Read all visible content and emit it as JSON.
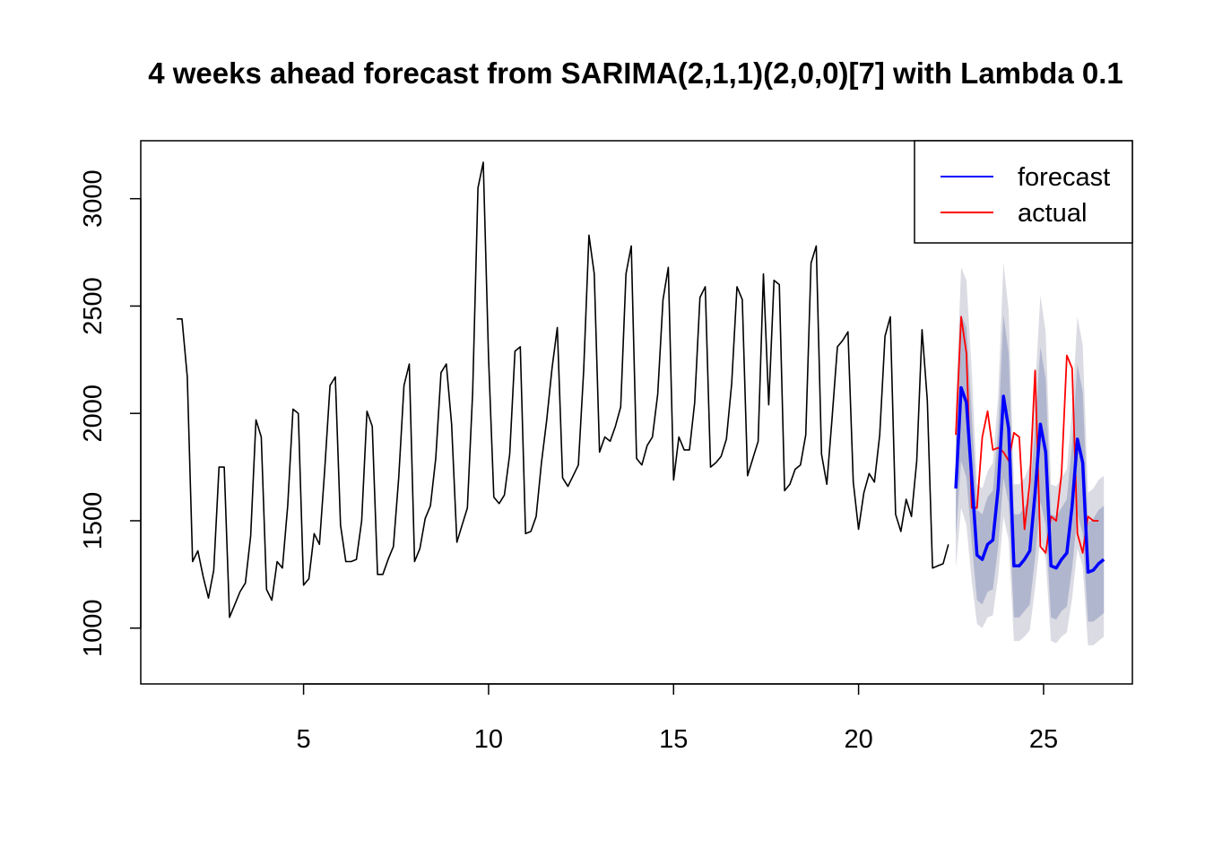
{
  "chart_data": {
    "type": "line",
    "title": "4 weeks ahead forecast from SARIMA(2,1,1)(2,0,0)[7] with Lambda 0.1",
    "xlabel": "",
    "ylabel": "",
    "xlim": [
      0.6,
      27.4
    ],
    "ylim": [
      740,
      3270
    ],
    "x_ticks": [
      5,
      10,
      15,
      20,
      25
    ],
    "y_ticks": [
      1000,
      1500,
      2000,
      2500,
      3000
    ],
    "grid": false,
    "legend": {
      "position": "top-right",
      "entries": [
        {
          "label": "forecast",
          "color": "#0000FF"
        },
        {
          "label": "actual",
          "color": "#FF0000"
        }
      ]
    },
    "colors": {
      "history": "#000000",
      "forecast": "#0000FF",
      "actual": "#FF0000",
      "interval_80": "#B1B6CF",
      "interval_95": "#DBDBE3"
    },
    "history": {
      "start_x": 1.5714,
      "step": 0.142857,
      "values": [
        2440,
        2440,
        2170,
        1310,
        1360,
        1240,
        1140,
        1270,
        1750,
        1750,
        1050,
        1110,
        1170,
        1210,
        1430,
        1970,
        1890,
        1180,
        1130,
        1310,
        1280,
        1570,
        2020,
        2000,
        1200,
        1230,
        1440,
        1390,
        1740,
        2130,
        2170,
        1480,
        1310,
        1310,
        1320,
        1500,
        2010,
        1940,
        1250,
        1250,
        1320,
        1380,
        1700,
        2130,
        2230,
        1310,
        1370,
        1510,
        1570,
        1790,
        2190,
        2230,
        1950,
        1400,
        1480,
        1560,
        2100,
        3050,
        3170,
        2260,
        1610,
        1580,
        1620,
        1810,
        2290,
        2310,
        1440,
        1450,
        1520,
        1770,
        1970,
        2210,
        2400,
        1700,
        1660,
        1710,
        1760,
        2200,
        2830,
        2650,
        1820,
        1890,
        1870,
        1940,
        2030,
        2650,
        2780,
        1790,
        1760,
        1850,
        1890,
        2090,
        2530,
        2680,
        1690,
        1890,
        1830,
        1830,
        2050,
        2540,
        2590,
        1750,
        1770,
        1800,
        1880,
        2140,
        2590,
        2530,
        1710,
        1790,
        1870,
        2650,
        2040,
        2620,
        2600,
        1640,
        1670,
        1740,
        1760,
        1900,
        2700,
        2780,
        1810,
        1670,
        1980,
        2310,
        2340,
        2380,
        1680,
        1460,
        1630,
        1720,
        1680,
        1900,
        2360,
        2450,
        1530,
        1450,
        1600,
        1520,
        1780,
        2390,
        2060,
        1280,
        1290,
        1300,
        1390
      ]
    },
    "forecast": {
      "start_x": 22.6286,
      "step": 0.142857,
      "values": [
        1650,
        2120,
        2050,
        1700,
        1340,
        1320,
        1390,
        1410,
        1650,
        2080,
        1930,
        1290,
        1290,
        1320,
        1360,
        1630,
        1950,
        1820,
        1290,
        1280,
        1320,
        1350,
        1570,
        1880,
        1770,
        1260,
        1270,
        1300,
        1320
      ],
      "lo80": [
        1420,
        1780,
        1700,
        1400,
        1130,
        1110,
        1170,
        1180,
        1380,
        1700,
        1580,
        1050,
        1050,
        1080,
        1110,
        1330,
        1590,
        1480,
        1050,
        1040,
        1080,
        1100,
        1280,
        1530,
        1440,
        1030,
        1030,
        1050,
        1070
      ],
      "hi80": [
        1880,
        2460,
        2400,
        2000,
        1550,
        1530,
        1610,
        1640,
        1920,
        2460,
        2280,
        1530,
        1530,
        1560,
        1610,
        1930,
        2310,
        2160,
        1530,
        1520,
        1560,
        1600,
        1860,
        2230,
        2100,
        1490,
        1510,
        1550,
        1570
      ],
      "lo95": [
        1280,
        1560,
        1480,
        1220,
        1020,
        1000,
        1050,
        1060,
        1240,
        1520,
        1410,
        940,
        940,
        960,
        990,
        1190,
        1420,
        1320,
        940,
        930,
        960,
        980,
        1140,
        1370,
        1290,
        920,
        920,
        940,
        960
      ],
      "hi95": [
        2040,
        2680,
        2620,
        2200,
        1670,
        1650,
        1730,
        1770,
        2080,
        2700,
        2480,
        1670,
        1670,
        1700,
        1760,
        2110,
        2550,
        2380,
        1670,
        1660,
        1700,
        1740,
        2020,
        2450,
        2320,
        1630,
        1650,
        1690,
        1710
      ]
    },
    "actual": {
      "start_x": 22.6286,
      "step": 0.142857,
      "values": [
        1900,
        2450,
        2280,
        1560,
        1560,
        1890,
        2010,
        1830,
        1840,
        1820,
        1780,
        1910,
        1890,
        1460,
        1680,
        2200,
        1380,
        1350,
        1520,
        1500,
        1720,
        2270,
        2210,
        1440,
        1350,
        1520,
        1500,
        1500
      ]
    }
  }
}
